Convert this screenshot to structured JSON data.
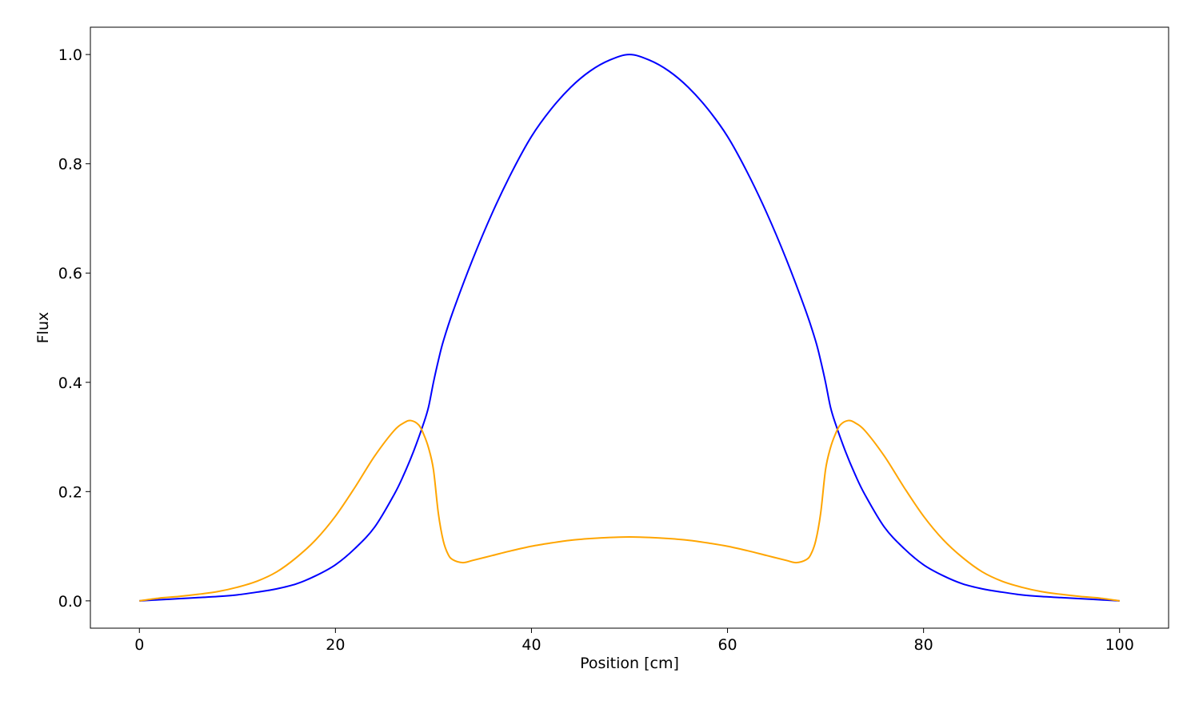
{
  "chart_data": {
    "type": "line",
    "title": "",
    "xlabel": "Position [cm]",
    "ylabel": "Flux",
    "xlim": [
      -5,
      105
    ],
    "ylim": [
      -0.05,
      1.05
    ],
    "xticks": [
      0,
      20,
      40,
      60,
      80,
      100
    ],
    "xtick_labels": [
      "0",
      "20",
      "40",
      "60",
      "80",
      "100"
    ],
    "yticks": [
      0.0,
      0.2,
      0.4,
      0.6,
      0.8,
      1.0
    ],
    "ytick_labels": [
      "0.0",
      "0.2",
      "0.4",
      "0.6",
      "0.8",
      "1.0"
    ],
    "grid": false,
    "legend": "none",
    "series": [
      {
        "color": "#0000ff",
        "x": [
          0,
          2,
          4,
          6,
          8,
          10,
          12,
          14,
          16,
          18,
          20,
          22,
          24,
          26,
          27,
          28,
          29,
          29.5,
          30,
          30.5,
          31,
          32,
          34,
          36,
          38,
          40,
          42,
          44,
          46,
          48,
          50,
          52,
          54,
          56,
          58,
          60,
          62,
          64,
          66,
          68,
          69,
          69.5,
          70,
          70.5,
          71,
          72,
          73,
          74,
          76,
          78,
          80,
          82,
          84,
          86,
          88,
          90,
          92,
          94,
          96,
          98,
          100
        ],
        "y": [
          0.0,
          0.002,
          0.004,
          0.006,
          0.008,
          0.011,
          0.016,
          0.022,
          0.031,
          0.046,
          0.066,
          0.096,
          0.135,
          0.195,
          0.232,
          0.275,
          0.325,
          0.355,
          0.4,
          0.44,
          0.475,
          0.53,
          0.625,
          0.71,
          0.785,
          0.85,
          0.9,
          0.94,
          0.97,
          0.99,
          1.0,
          0.99,
          0.97,
          0.94,
          0.9,
          0.85,
          0.785,
          0.71,
          0.625,
          0.53,
          0.475,
          0.44,
          0.4,
          0.355,
          0.325,
          0.275,
          0.232,
          0.195,
          0.135,
          0.096,
          0.066,
          0.046,
          0.031,
          0.022,
          0.016,
          0.011,
          0.008,
          0.006,
          0.004,
          0.002,
          0.0
        ]
      },
      {
        "color": "#ffa500",
        "x": [
          0,
          2,
          4,
          6,
          8,
          10,
          12,
          14,
          16,
          18,
          20,
          22,
          24,
          26,
          27,
          27.7,
          28.5,
          29,
          29.5,
          30,
          30.5,
          31,
          31.5,
          32,
          33,
          34,
          36,
          38,
          40,
          42,
          44,
          46,
          48,
          50,
          52,
          54,
          56,
          58,
          60,
          62,
          64,
          66,
          67,
          68,
          68.5,
          69,
          69.5,
          70,
          70.5,
          71,
          71.5,
          72.3,
          73,
          74,
          76,
          78,
          80,
          82,
          84,
          86,
          88,
          90,
          92,
          94,
          96,
          98,
          100
        ],
        "y": [
          0.0,
          0.005,
          0.008,
          0.012,
          0.017,
          0.025,
          0.036,
          0.053,
          0.079,
          0.112,
          0.155,
          0.208,
          0.265,
          0.312,
          0.326,
          0.33,
          0.322,
          0.305,
          0.28,
          0.24,
          0.16,
          0.11,
          0.085,
          0.075,
          0.07,
          0.074,
          0.083,
          0.092,
          0.1,
          0.106,
          0.111,
          0.114,
          0.116,
          0.117,
          0.116,
          0.114,
          0.111,
          0.106,
          0.1,
          0.092,
          0.083,
          0.074,
          0.07,
          0.075,
          0.085,
          0.11,
          0.16,
          0.24,
          0.28,
          0.305,
          0.322,
          0.33,
          0.326,
          0.312,
          0.265,
          0.208,
          0.155,
          0.112,
          0.079,
          0.053,
          0.036,
          0.025,
          0.017,
          0.012,
          0.008,
          0.005,
          0.0
        ]
      }
    ]
  }
}
